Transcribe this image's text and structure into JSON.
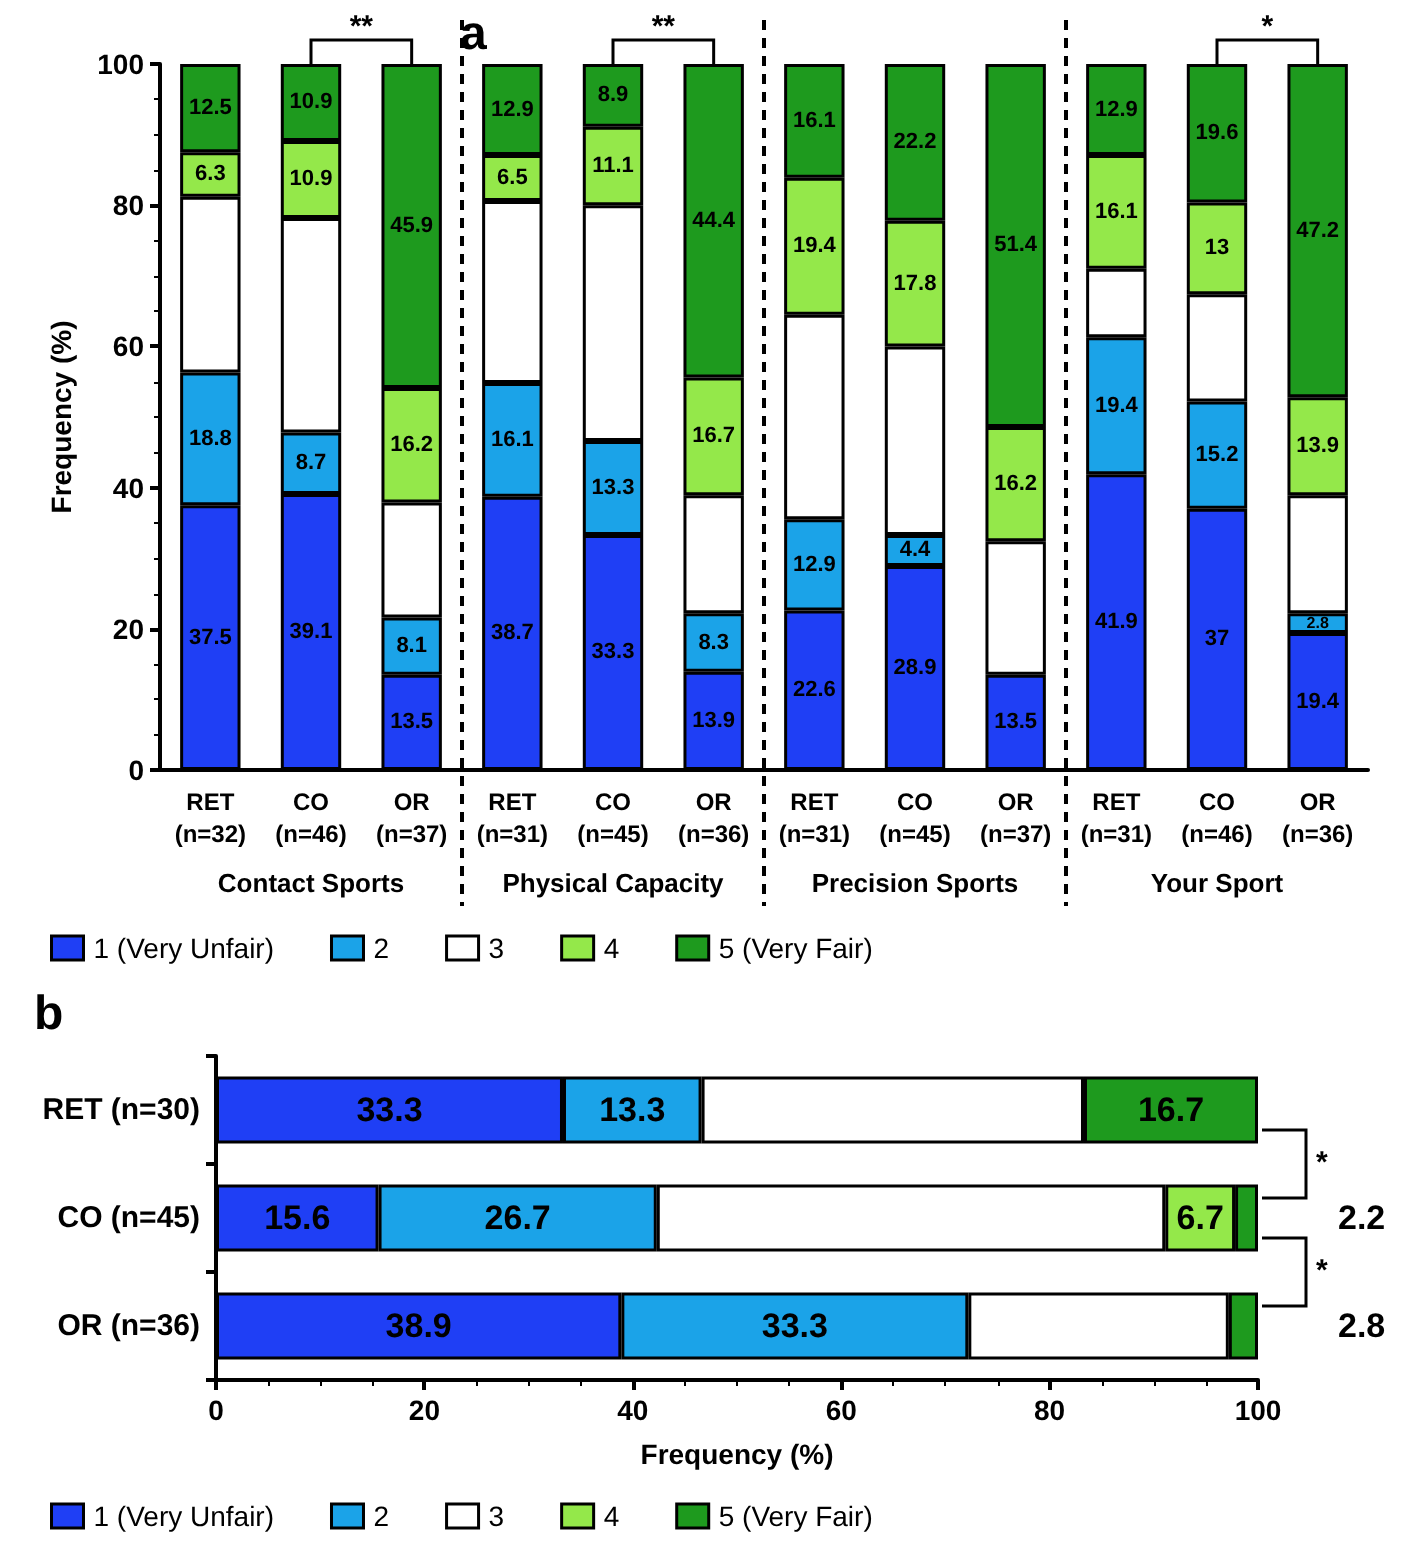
{
  "chart_data": [
    {
      "type": "bar",
      "title": "a",
      "ylabel": "Frequency (%)",
      "stacked": true,
      "legend": "bottom",
      "grid": false,
      "categories": [
        "RET\n(n=32)",
        "CO\n(n=46)",
        "OR\n(n=37)",
        "RET\n(n=31)",
        "CO\n(n=45)",
        "OR\n(n=36)",
        "RET\n(n=31)",
        "CO\n(n=45)",
        "OR\n(n=37)",
        "RET\n(n=31)",
        "CO\n(n=46)",
        "OR\n(n=36)"
      ],
      "ylim": [
        0,
        100
      ],
      "yticks": [
        0,
        20,
        40,
        60,
        80,
        100
      ],
      "series": [
        {
          "name": "1 (Very Unfair)",
          "color": "#1f3ff5",
          "values": [
            37.5,
            39.1,
            13.5,
            38.7,
            33.3,
            13.9,
            22.6,
            28.9,
            13.5,
            41.9,
            37,
            19.4
          ],
          "value_labels": [
            "37.5",
            "39.1",
            "13.5",
            "38.7",
            "33.3",
            "13.9",
            "22.6",
            "28.9",
            "13.5",
            "41.9",
            "37",
            "19.4"
          ]
        },
        {
          "name": "2",
          "color": "#1ba3e8",
          "values": [
            18.8,
            8.7,
            8.1,
            16.1,
            13.3,
            8.3,
            12.9,
            4.4,
            null,
            19.4,
            15.2,
            2.8
          ],
          "value_labels": [
            "18.8",
            "8.7",
            "8.1",
            "16.1",
            "13.3",
            "8.3",
            "12.9",
            "4.4",
            null,
            "19.4",
            "15.2",
            "2.8"
          ]
        },
        {
          "name": "3",
          "color": "#ffffff",
          "values": [
            24.9,
            30.4,
            16.3,
            25.8,
            33.4,
            16.7,
            29.0,
            26.7,
            18.9,
            9.7,
            15.2,
            16.7
          ]
        },
        {
          "name": "4",
          "color": "#94e84a",
          "values": [
            6.3,
            10.9,
            16.2,
            6.5,
            11.1,
            16.7,
            19.4,
            17.8,
            16.2,
            16.1,
            13,
            13.9
          ],
          "value_labels": [
            "6.3",
            "10.9",
            "16.2",
            "6.5",
            "11.1",
            "16.7",
            "19.4",
            "17.8",
            "16.2",
            "16.1",
            "13",
            "13.9"
          ]
        },
        {
          "name": "5 (Very Fair)",
          "color": "#1e9a1e",
          "values": [
            12.5,
            10.9,
            45.9,
            12.9,
            8.9,
            44.4,
            16.1,
            22.2,
            51.4,
            12.9,
            19.6,
            47.2
          ],
          "value_labels": [
            "12.5",
            "10.9",
            "45.9",
            "12.9",
            "8.9",
            "44.4",
            "16.1",
            "22.2",
            "51.4",
            "12.9",
            "19.6",
            "47.2"
          ]
        }
      ],
      "annotations": [
        "Contact Sports",
        "Physical Capacity",
        "Precision Sports",
        "Your Sport",
        "**",
        "**",
        "*"
      ]
    },
    {
      "type": "bar",
      "title": "b",
      "xlabel": "Frequency (%)",
      "stacked": true,
      "orientation": "horizontal",
      "legend": "bottom",
      "grid": false,
      "categories": [
        "RET (n=30)",
        "CO (n=45)",
        "OR (n=36)"
      ],
      "xlim": [
        0,
        100
      ],
      "xticks": [
        0,
        20,
        40,
        60,
        80,
        100
      ],
      "series": [
        {
          "name": "1 (Very Unfair)",
          "color": "#1f3ff5",
          "values": [
            33.3,
            15.6,
            38.9
          ],
          "value_labels": [
            "33.3",
            "15.6",
            "38.9"
          ]
        },
        {
          "name": "2",
          "color": "#1ba3e8",
          "values": [
            13.3,
            26.7,
            33.3
          ],
          "value_labels": [
            "13.3",
            "26.7",
            "33.3"
          ]
        },
        {
          "name": "3",
          "color": "#ffffff",
          "values": [
            36.7,
            48.8,
            25.0
          ]
        },
        {
          "name": "4",
          "color": "#94e84a",
          "values": [
            null,
            6.7,
            null
          ],
          "value_labels": [
            null,
            "6.7",
            null
          ]
        },
        {
          "name": "5 (Very Fair)",
          "color": "#1e9a1e",
          "values": [
            16.7,
            2.2,
            2.8
          ],
          "value_labels": [
            "16.7",
            "2.2",
            "2.8"
          ]
        }
      ],
      "annotations": [
        "*",
        "*"
      ]
    }
  ]
}
